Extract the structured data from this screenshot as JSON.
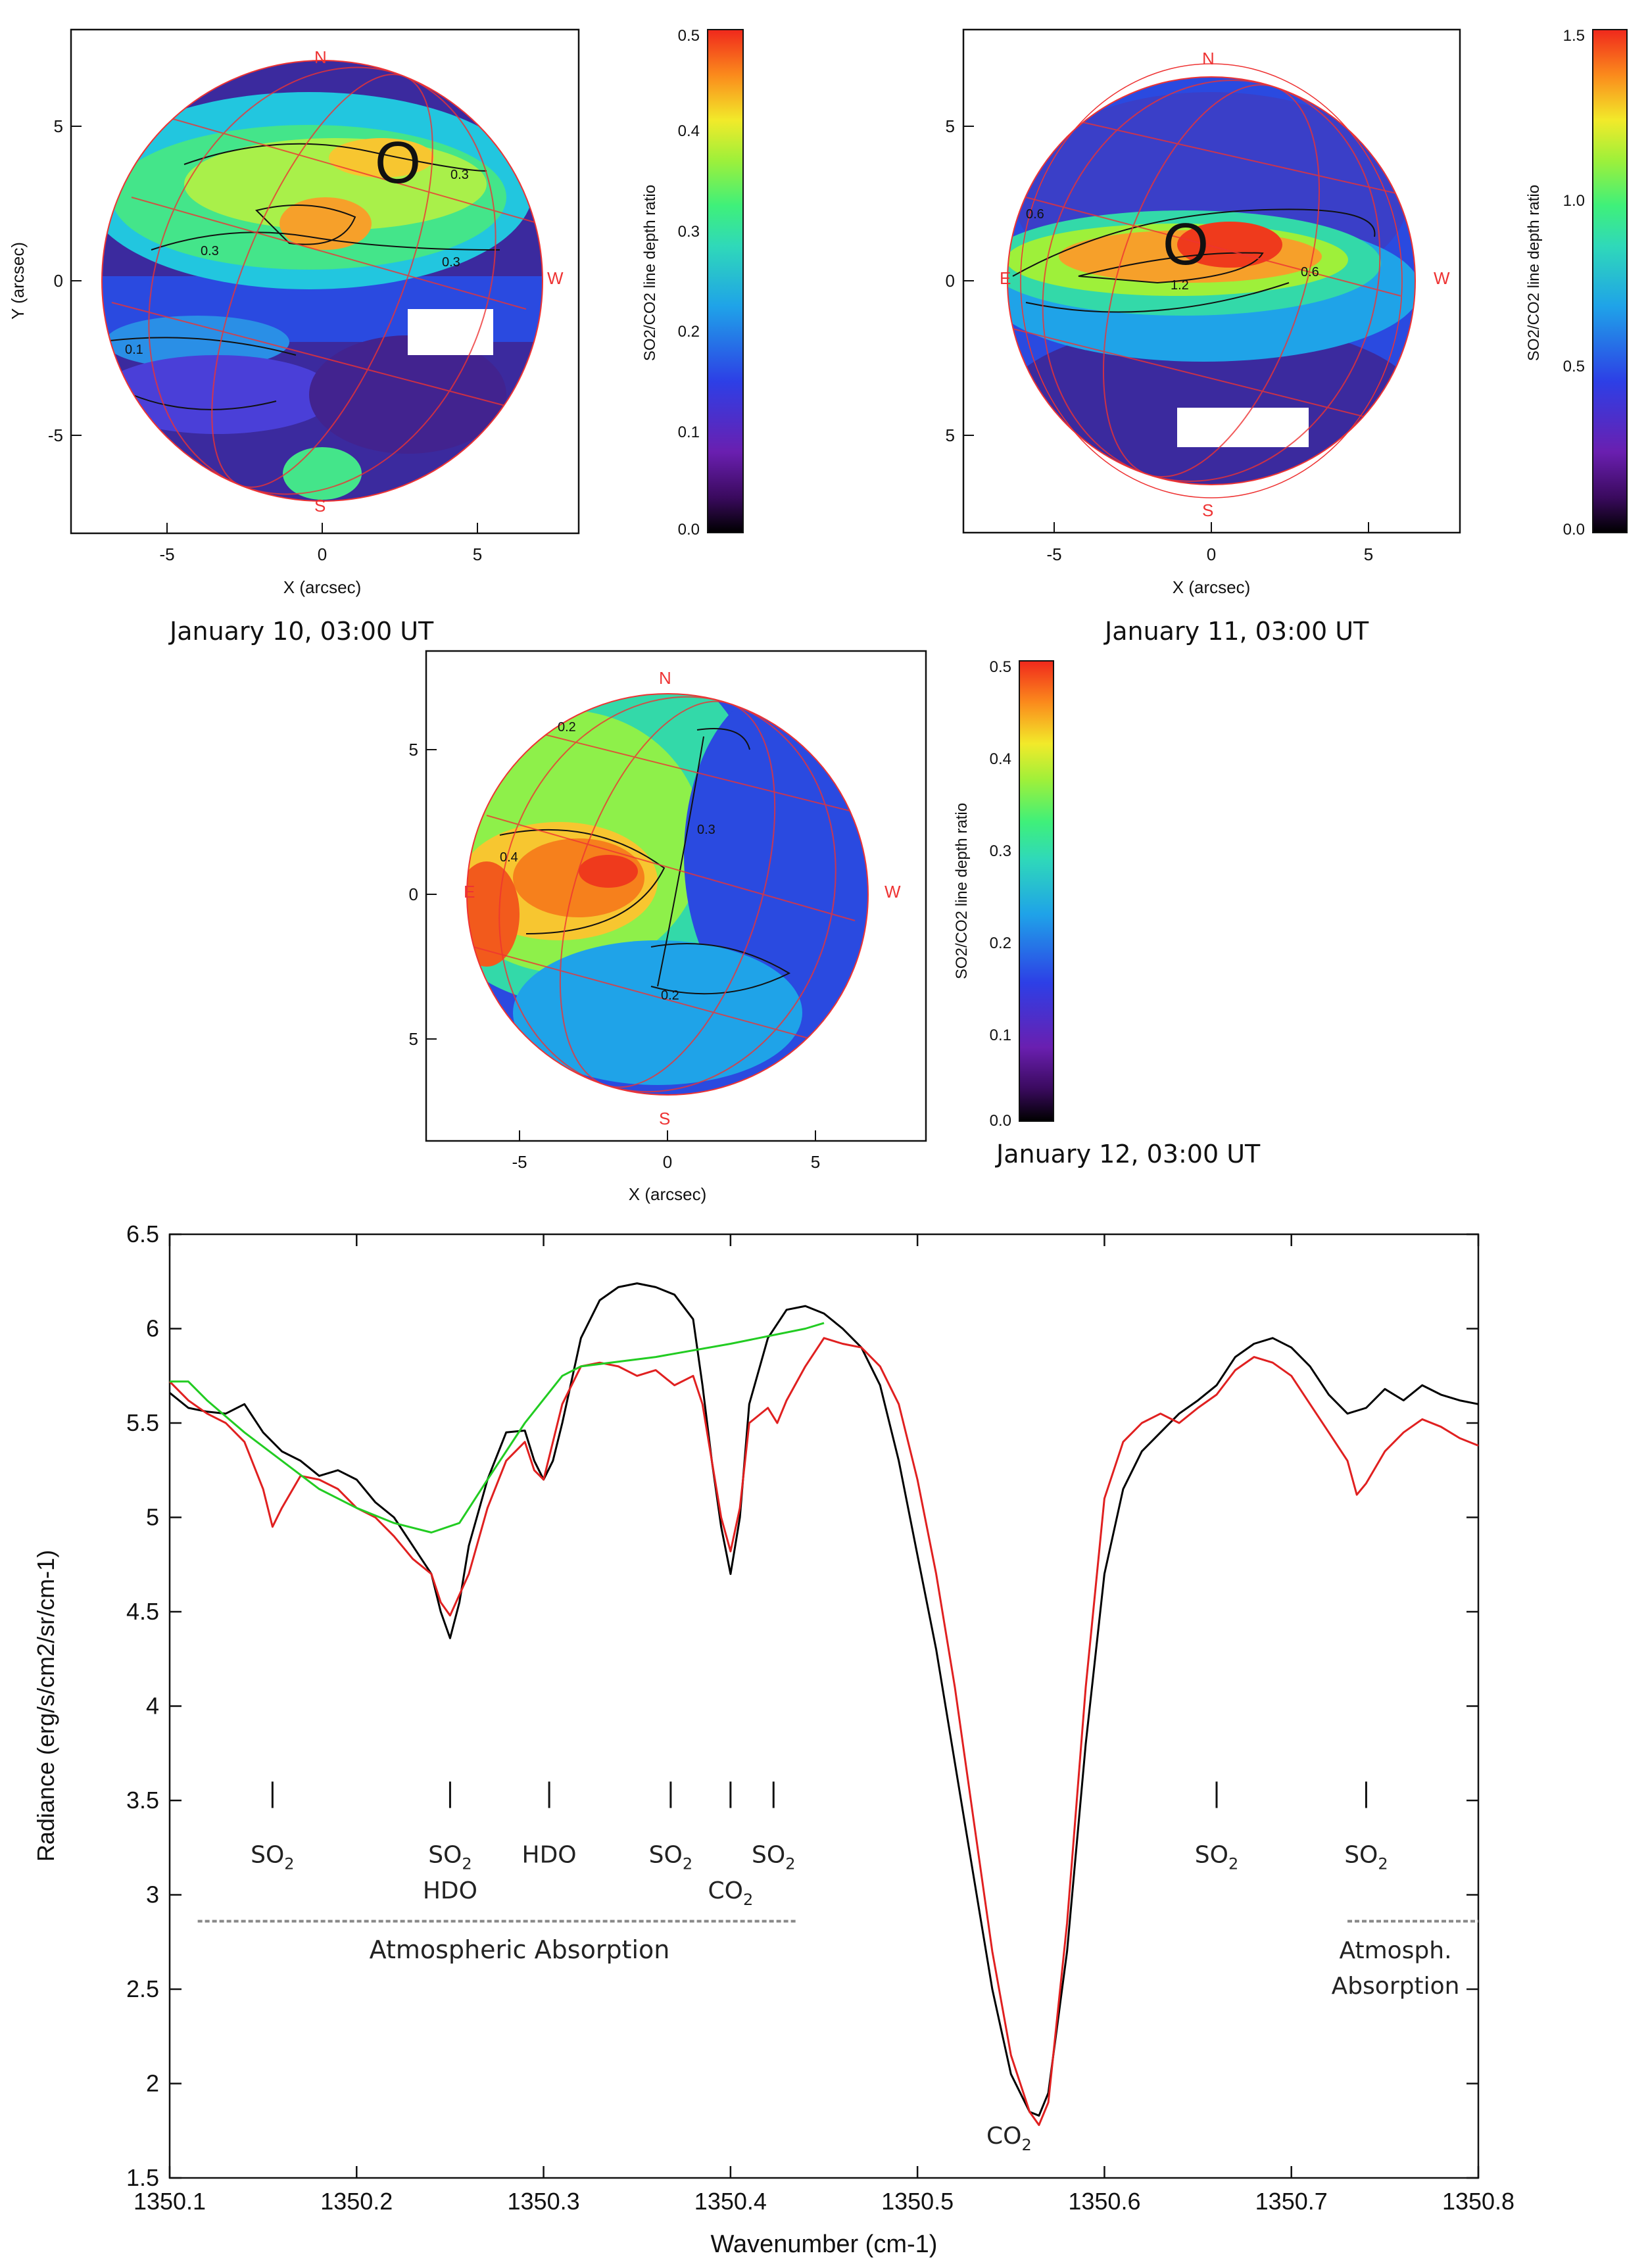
{
  "maps": [
    {
      "id": "jan10",
      "caption": "January 10, 03:00 UT",
      "xlabel": "X (arcsec)",
      "ylabel": "Y (arcsec)",
      "xticks": [
        "-5",
        "0",
        "5"
      ],
      "yticks": [
        "5",
        "0",
        "-5"
      ],
      "compass": {
        "n": "N",
        "s": "S",
        "w": "W",
        "e": ""
      },
      "contour_labels": [
        "0.3",
        "0.3",
        "0.3",
        "0.1"
      ],
      "marker": "O",
      "colorbar": {
        "label": "SO2/CO2 line depth ratio",
        "ticks": [
          "0.5",
          "0.4",
          "0.3",
          "0.2",
          "0.1",
          "0.0"
        ],
        "range": [
          0.0,
          0.5
        ]
      }
    },
    {
      "id": "jan11",
      "caption": "January 11, 03:00 UT",
      "xlabel": "X (arcsec)",
      "ylabel": "",
      "xticks": [
        "-5",
        "0",
        "5"
      ],
      "yticks": [
        "5",
        "0",
        "5"
      ],
      "compass": {
        "n": "N",
        "s": "S",
        "w": "W",
        "e": "E"
      },
      "contour_labels": [
        "0.6",
        "1.2",
        "0.6"
      ],
      "marker": "O",
      "colorbar": {
        "label": "SO2/CO2 line depth ratio",
        "ticks": [
          "1.5",
          "1.0",
          "0.5",
          "0.0"
        ],
        "range": [
          0.0,
          1.5
        ]
      }
    },
    {
      "id": "jan12",
      "caption": "January 12, 03:00 UT",
      "xlabel": "X (arcsec)",
      "ylabel": "",
      "xticks": [
        "-5",
        "0",
        "5"
      ],
      "yticks": [
        "5",
        "0",
        "5"
      ],
      "compass": {
        "n": "N",
        "s": "S",
        "w": "W",
        "e": "E"
      },
      "contour_labels": [
        "0.2",
        "0.4",
        "0.3",
        "0.2"
      ],
      "marker": "",
      "colorbar": {
        "label": "SO2/CO2 line depth ratio",
        "ticks": [
          "0.5",
          "0.4",
          "0.3",
          "0.2",
          "0.1",
          "0.0"
        ],
        "range": [
          0.0,
          0.5
        ]
      }
    }
  ],
  "chart_data": {
    "type": "line",
    "title": "",
    "xlabel": "Wavenumber (cm-1)",
    "ylabel": "Radiance (erg/s/cm2/sr/cm-1)",
    "xlim": [
      1350.1,
      1350.8
    ],
    "ylim": [
      1.5,
      6.5
    ],
    "xticks": [
      "1350.1",
      "1350.2",
      "1350.3",
      "1350.4",
      "1350.5",
      "1350.6",
      "1350.7",
      "1350.8"
    ],
    "yticks": [
      "1.5",
      "2",
      "2.5",
      "3",
      "3.5",
      "4",
      "4.5",
      "5",
      "5.5",
      "6",
      "6.5"
    ],
    "colors": {
      "observed": "#000000",
      "model": "#e02020",
      "continuum": "#22cc22",
      "dashed": "#888888"
    },
    "series": [
      {
        "name": "observed",
        "color": "#000000",
        "points": [
          [
            1350.1,
            5.66
          ],
          [
            1350.11,
            5.58
          ],
          [
            1350.12,
            5.56
          ],
          [
            1350.13,
            5.55
          ],
          [
            1350.14,
            5.6
          ],
          [
            1350.15,
            5.45
          ],
          [
            1350.16,
            5.35
          ],
          [
            1350.17,
            5.3
          ],
          [
            1350.18,
            5.22
          ],
          [
            1350.19,
            5.25
          ],
          [
            1350.2,
            5.2
          ],
          [
            1350.21,
            5.08
          ],
          [
            1350.22,
            5.0
          ],
          [
            1350.23,
            4.85
          ],
          [
            1350.24,
            4.7
          ],
          [
            1350.245,
            4.5
          ],
          [
            1350.25,
            4.36
          ],
          [
            1350.255,
            4.55
          ],
          [
            1350.26,
            4.85
          ],
          [
            1350.27,
            5.2
          ],
          [
            1350.28,
            5.45
          ],
          [
            1350.29,
            5.46
          ],
          [
            1350.295,
            5.3
          ],
          [
            1350.3,
            5.2
          ],
          [
            1350.305,
            5.3
          ],
          [
            1350.31,
            5.5
          ],
          [
            1350.32,
            5.95
          ],
          [
            1350.33,
            6.15
          ],
          [
            1350.34,
            6.22
          ],
          [
            1350.35,
            6.24
          ],
          [
            1350.36,
            6.22
          ],
          [
            1350.37,
            6.18
          ],
          [
            1350.38,
            6.05
          ],
          [
            1350.385,
            5.7
          ],
          [
            1350.39,
            5.3
          ],
          [
            1350.395,
            4.95
          ],
          [
            1350.4,
            4.7
          ],
          [
            1350.405,
            5.0
          ],
          [
            1350.41,
            5.6
          ],
          [
            1350.42,
            5.95
          ],
          [
            1350.43,
            6.1
          ],
          [
            1350.44,
            6.12
          ],
          [
            1350.45,
            6.08
          ],
          [
            1350.46,
            6.0
          ],
          [
            1350.47,
            5.9
          ],
          [
            1350.48,
            5.7
          ],
          [
            1350.49,
            5.3
          ],
          [
            1350.5,
            4.8
          ],
          [
            1350.51,
            4.3
          ],
          [
            1350.52,
            3.7
          ],
          [
            1350.53,
            3.1
          ],
          [
            1350.54,
            2.5
          ],
          [
            1350.55,
            2.05
          ],
          [
            1350.56,
            1.85
          ],
          [
            1350.565,
            1.83
          ],
          [
            1350.57,
            1.95
          ],
          [
            1350.58,
            2.7
          ],
          [
            1350.59,
            3.8
          ],
          [
            1350.6,
            4.7
          ],
          [
            1350.61,
            5.15
          ],
          [
            1350.62,
            5.35
          ],
          [
            1350.63,
            5.45
          ],
          [
            1350.64,
            5.55
          ],
          [
            1350.65,
            5.62
          ],
          [
            1350.66,
            5.7
          ],
          [
            1350.67,
            5.85
          ],
          [
            1350.68,
            5.92
          ],
          [
            1350.69,
            5.95
          ],
          [
            1350.7,
            5.9
          ],
          [
            1350.71,
            5.8
          ],
          [
            1350.72,
            5.65
          ],
          [
            1350.73,
            5.55
          ],
          [
            1350.74,
            5.58
          ],
          [
            1350.75,
            5.68
          ],
          [
            1350.76,
            5.62
          ],
          [
            1350.77,
            5.7
          ],
          [
            1350.78,
            5.65
          ],
          [
            1350.79,
            5.62
          ],
          [
            1350.8,
            5.6
          ]
        ]
      },
      {
        "name": "model",
        "color": "#e02020",
        "points": [
          [
            1350.1,
            5.72
          ],
          [
            1350.11,
            5.62
          ],
          [
            1350.12,
            5.55
          ],
          [
            1350.13,
            5.5
          ],
          [
            1350.14,
            5.4
          ],
          [
            1350.15,
            5.15
          ],
          [
            1350.155,
            4.95
          ],
          [
            1350.16,
            5.05
          ],
          [
            1350.17,
            5.22
          ],
          [
            1350.18,
            5.2
          ],
          [
            1350.19,
            5.15
          ],
          [
            1350.2,
            5.05
          ],
          [
            1350.21,
            5.0
          ],
          [
            1350.22,
            4.9
          ],
          [
            1350.23,
            4.78
          ],
          [
            1350.24,
            4.7
          ],
          [
            1350.245,
            4.55
          ],
          [
            1350.25,
            4.48
          ],
          [
            1350.26,
            4.7
          ],
          [
            1350.27,
            5.05
          ],
          [
            1350.28,
            5.3
          ],
          [
            1350.29,
            5.4
          ],
          [
            1350.295,
            5.25
          ],
          [
            1350.3,
            5.2
          ],
          [
            1350.31,
            5.6
          ],
          [
            1350.32,
            5.8
          ],
          [
            1350.33,
            5.82
          ],
          [
            1350.34,
            5.8
          ],
          [
            1350.35,
            5.75
          ],
          [
            1350.36,
            5.78
          ],
          [
            1350.37,
            5.7
          ],
          [
            1350.38,
            5.75
          ],
          [
            1350.385,
            5.6
          ],
          [
            1350.39,
            5.3
          ],
          [
            1350.395,
            5.0
          ],
          [
            1350.4,
            4.82
          ],
          [
            1350.405,
            5.05
          ],
          [
            1350.41,
            5.5
          ],
          [
            1350.42,
            5.58
          ],
          [
            1350.425,
            5.5
          ],
          [
            1350.43,
            5.62
          ],
          [
            1350.44,
            5.8
          ],
          [
            1350.45,
            5.95
          ],
          [
            1350.46,
            5.92
          ],
          [
            1350.47,
            5.9
          ],
          [
            1350.48,
            5.8
          ],
          [
            1350.49,
            5.6
          ],
          [
            1350.5,
            5.2
          ],
          [
            1350.51,
            4.7
          ],
          [
            1350.52,
            4.1
          ],
          [
            1350.53,
            3.4
          ],
          [
            1350.54,
            2.7
          ],
          [
            1350.55,
            2.15
          ],
          [
            1350.56,
            1.85
          ],
          [
            1350.565,
            1.78
          ],
          [
            1350.57,
            1.9
          ],
          [
            1350.58,
            2.85
          ],
          [
            1350.59,
            4.1
          ],
          [
            1350.6,
            5.1
          ],
          [
            1350.61,
            5.4
          ],
          [
            1350.62,
            5.5
          ],
          [
            1350.63,
            5.55
          ],
          [
            1350.64,
            5.5
          ],
          [
            1350.65,
            5.58
          ],
          [
            1350.66,
            5.65
          ],
          [
            1350.67,
            5.78
          ],
          [
            1350.68,
            5.85
          ],
          [
            1350.69,
            5.82
          ],
          [
            1350.7,
            5.75
          ],
          [
            1350.71,
            5.6
          ],
          [
            1350.72,
            5.45
          ],
          [
            1350.73,
            5.3
          ],
          [
            1350.735,
            5.12
          ],
          [
            1350.74,
            5.18
          ],
          [
            1350.75,
            5.35
          ],
          [
            1350.76,
            5.45
          ],
          [
            1350.77,
            5.52
          ],
          [
            1350.78,
            5.48
          ],
          [
            1350.79,
            5.42
          ],
          [
            1350.8,
            5.38
          ]
        ]
      },
      {
        "name": "continuum",
        "color": "#22cc22",
        "points": [
          [
            1350.1,
            5.72
          ],
          [
            1350.11,
            5.72
          ],
          [
            1350.12,
            5.62
          ],
          [
            1350.14,
            5.45
          ],
          [
            1350.16,
            5.3
          ],
          [
            1350.18,
            5.15
          ],
          [
            1350.2,
            5.05
          ],
          [
            1350.22,
            4.97
          ],
          [
            1350.24,
            4.92
          ],
          [
            1350.255,
            4.97
          ],
          [
            1350.27,
            5.2
          ],
          [
            1350.29,
            5.5
          ],
          [
            1350.31,
            5.75
          ],
          [
            1350.32,
            5.8
          ],
          [
            1350.36,
            5.85
          ],
          [
            1350.4,
            5.92
          ],
          [
            1350.44,
            6.0
          ],
          [
            1350.45,
            6.03
          ]
        ]
      }
    ],
    "annotations": [
      {
        "x": 1350.155,
        "top": "SO",
        "sub": "2",
        "bottom": ""
      },
      {
        "x": 1350.25,
        "top": "SO",
        "sub": "2",
        "bottom": "HDO"
      },
      {
        "x": 1350.303,
        "top": "HDO",
        "sub": "",
        "bottom": ""
      },
      {
        "x": 1350.368,
        "top": "SO",
        "sub": "2",
        "bottom": ""
      },
      {
        "x": 1350.4,
        "top": "",
        "sub": "",
        "bottom": "CO",
        "bottom_sub": "2"
      },
      {
        "x": 1350.423,
        "top": "SO",
        "sub": "2",
        "bottom": ""
      },
      {
        "x": 1350.66,
        "top": "SO",
        "sub": "2",
        "bottom": ""
      },
      {
        "x": 1350.74,
        "top": "SO",
        "sub": "2",
        "bottom": ""
      }
    ],
    "text_labels": {
      "atm_absorption": "Atmospheric  Absorption",
      "atm_short_1": "Atmosph.",
      "atm_short_2": "Absorption",
      "co2_main": "CO",
      "co2_main_sub": "2"
    },
    "dashed_ranges": [
      [
        1350.115,
        1350.435
      ],
      [
        1350.73,
        1350.8
      ]
    ],
    "dashed_y": 2.86
  }
}
